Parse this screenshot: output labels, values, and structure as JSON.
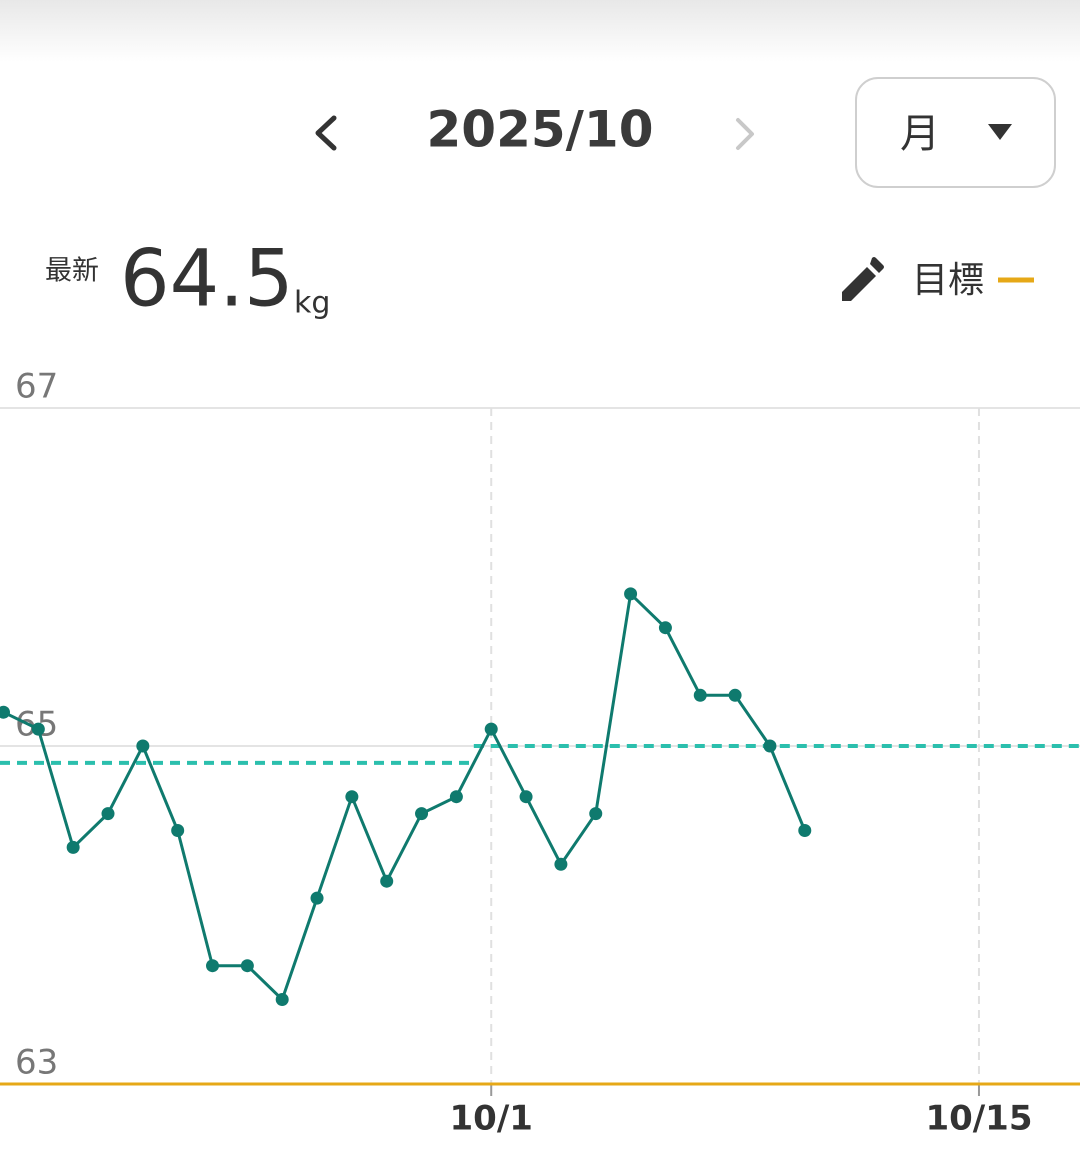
{
  "header": {
    "period": "2025/10",
    "range_select": "月",
    "latest_label": "最新",
    "latest_value": "64.5",
    "latest_unit": "kg",
    "goal_label": "目標"
  },
  "chart_data": {
    "type": "line",
    "x": [
      -14,
      -13,
      -12,
      -11,
      -10,
      -9,
      -8,
      -7,
      -6,
      -5,
      -4,
      -3,
      -2,
      -1,
      0,
      1,
      2,
      3,
      4,
      5,
      6,
      7,
      8,
      9
    ],
    "series": [
      {
        "color": "#0f7a6e",
        "values": [
          65.2,
          65.1,
          64.4,
          64.6,
          65.0,
          64.5,
          63.7,
          63.7,
          63.5,
          64.1,
          64.7,
          64.2,
          64.6,
          64.7,
          65.1,
          64.7,
          64.3,
          64.6,
          65.9,
          65.7,
          65.3,
          65.3,
          65.0,
          64.5
        ]
      }
    ],
    "averages": [
      {
        "x": [
          -14.1,
          -0.5
        ],
        "value": 64.9
      },
      {
        "x": [
          -0.5,
          16.9
        ],
        "value": 65.0
      }
    ],
    "average_color": "#2bbfad",
    "goal": 63,
    "goal_color": "#e6a817",
    "xlim": [
      -14.1,
      16.9
    ],
    "xticks": [
      {
        "value": 0,
        "label": "10/1"
      },
      {
        "value": 14,
        "label": "10/15"
      }
    ],
    "ylim": [
      63,
      67
    ],
    "yticks": [
      63,
      65,
      67
    ],
    "grid": true
  }
}
